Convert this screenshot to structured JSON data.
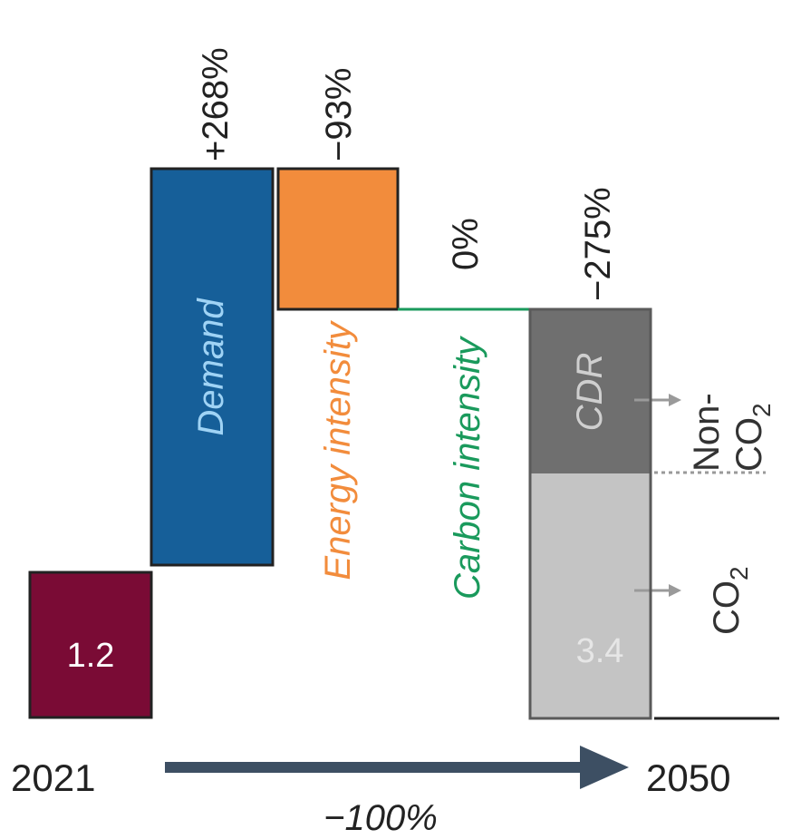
{
  "chart_data": {
    "type": "waterfall",
    "title": "",
    "start": {
      "label": "2021",
      "value": 1.2,
      "value_label": "1.2",
      "color": "#7a0b35"
    },
    "end": {
      "label": "2050",
      "value": 3.4,
      "value_label": "3.4",
      "color": "#c4c4c4"
    },
    "steps": [
      {
        "name": "Demand",
        "change": "+268%",
        "color": "#165f99"
      },
      {
        "name": "Energy intensity",
        "change": "−93%",
        "color": "#f28c3c"
      },
      {
        "name": "Carbon intensity",
        "change": "0%",
        "color": "#1a9a5c"
      }
    ],
    "final_bar": {
      "change": "−275%",
      "segments": [
        {
          "name": "CDR",
          "color": "#6f6f6f"
        },
        {
          "name": "CO2",
          "value_label": "3.4",
          "color": "#c4c4c4"
        }
      ]
    },
    "side_annotations": {
      "upper": {
        "text": "Non-",
        "text2": "CO",
        "subscript": "2"
      },
      "lower": {
        "text": "CO",
        "subscript": "2"
      }
    },
    "overall": {
      "change": "−100%",
      "from": "2021",
      "to": "2050",
      "arrow_color": "#3d4f63"
    }
  }
}
